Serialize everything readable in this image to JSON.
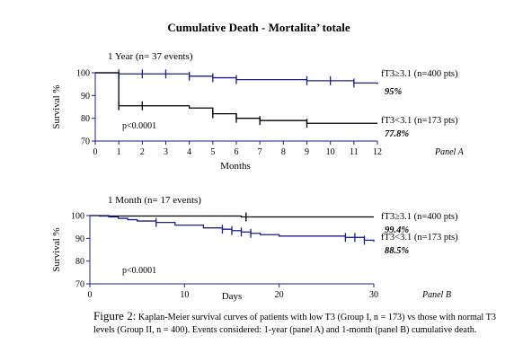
{
  "figure": {
    "title": "Cumulative Death  - Mortalita’ totale",
    "caption_lead": "Figure 2:",
    "caption_body": " Kaplan-Meier survival curves of patients with low T3 (Group I, n = 173) vs those with normal T3 levels (Group II, n = 400). Events considered: 1-year (panel A) and 1-month (panel B) cumulative death."
  },
  "chart_data": [
    {
      "type": "line",
      "panel_label": "Panel A",
      "subtitle": "1 Year (n= 37 events)",
      "xlabel": "Months",
      "ylabel": "Survival %",
      "xlim": [
        0,
        12
      ],
      "ylim": [
        70,
        100
      ],
      "xticks": [
        0,
        1,
        2,
        3,
        4,
        5,
        6,
        7,
        8,
        9,
        10,
        11,
        12
      ],
      "yticks": [
        70,
        80,
        90,
        100
      ],
      "grid": false,
      "annotation": "p<0.0001",
      "color": "#1f1f8f",
      "series": [
        {
          "name": "fT3≥3.1 (n=400 pts)",
          "final_label": "95%",
          "color": "#1f1f8f",
          "x": [
            0,
            1,
            3,
            4,
            5,
            6,
            9,
            11,
            12
          ],
          "y": [
            100,
            99.5,
            99.5,
            98.5,
            97.8,
            97,
            96.5,
            95.5,
            95
          ],
          "censor_x": [
            1,
            2,
            3,
            4,
            5,
            6,
            9,
            10,
            11
          ]
        },
        {
          "name": "fT3<3.1 (n=173 pts)",
          "final_label": "77.8%",
          "color": "#000000",
          "x": [
            0,
            1,
            4,
            5,
            6,
            7,
            9,
            12
          ],
          "y": [
            100,
            85.5,
            84.5,
            82,
            80,
            79,
            77.8,
            77.8
          ],
          "censor_x": [
            1,
            2,
            5,
            6,
            7,
            9
          ]
        }
      ]
    },
    {
      "type": "line",
      "panel_label": "Panel B",
      "subtitle": "1 Month (n= 17 events)",
      "xlabel": "Days",
      "ylabel": "Survival %",
      "xlim": [
        0,
        30
      ],
      "ylim": [
        70,
        100
      ],
      "xticks": [
        0,
        10,
        20,
        30
      ],
      "yticks": [
        70,
        80,
        90,
        100
      ],
      "grid": false,
      "annotation": "p<0.0001",
      "color": "#1f1f8f",
      "series": [
        {
          "name": "fT3≥3.1 (n=400 pts)",
          "final_label": "99.4%",
          "color": "#000000",
          "x": [
            0,
            1,
            16,
            30
          ],
          "y": [
            100,
            99.8,
            99.4,
            99.4
          ],
          "censor_x": [
            16.5
          ]
        },
        {
          "name": "fT3<3.1 (n=173 pts)",
          "final_label": "88.5%",
          "color": "#1f1f8f",
          "x": [
            0,
            2,
            3,
            4,
            5,
            7,
            9,
            12,
            14,
            15,
            16,
            17,
            18,
            20,
            27,
            29,
            30
          ],
          "y": [
            100,
            99.4,
            98.8,
            98.2,
            97.6,
            97,
            95.8,
            94.6,
            94,
            93.4,
            92.8,
            92.2,
            91.6,
            91,
            90.4,
            89.2,
            88.5
          ],
          "censor_x": [
            7,
            14,
            15,
            16,
            17,
            27,
            28,
            29
          ]
        }
      ]
    }
  ]
}
